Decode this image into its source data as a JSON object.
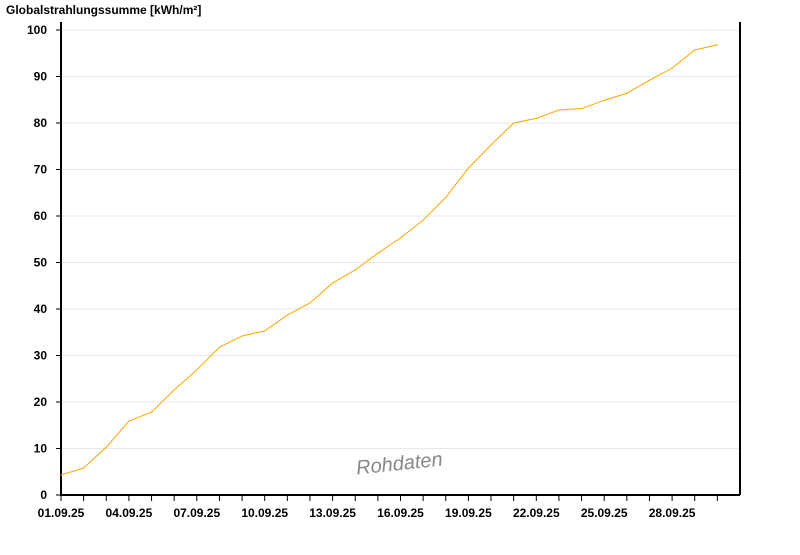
{
  "chart_data": {
    "type": "line",
    "ylabel": "Globalstrahlungssumme [kWh/m²]",
    "watermark": "Rohdaten",
    "ylim": [
      0,
      100
    ],
    "yticks": [
      0,
      10,
      20,
      30,
      40,
      50,
      60,
      70,
      80,
      90,
      100
    ],
    "grid": true,
    "x_tick_labels": [
      "01.09.25",
      "04.09.25",
      "07.09.25",
      "10.09.25",
      "13.09.25",
      "16.09.25",
      "19.09.25",
      "22.09.25",
      "25.09.25",
      "28.09.25"
    ],
    "x": [
      "01.09.25",
      "02.09.25",
      "03.09.25",
      "04.09.25",
      "05.09.25",
      "06.09.25",
      "07.09.25",
      "08.09.25",
      "09.09.25",
      "10.09.25",
      "11.09.25",
      "12.09.25",
      "13.09.25",
      "14.09.25",
      "15.09.25",
      "16.09.25",
      "17.09.25",
      "18.09.25",
      "19.09.25",
      "20.09.25",
      "21.09.25",
      "22.09.25",
      "23.09.25",
      "24.09.25",
      "25.09.25",
      "26.09.25",
      "27.09.25",
      "28.09.25",
      "29.09.25",
      "30.09.25"
    ],
    "series": [
      {
        "values": [
          4.3,
          5.8,
          10.3,
          15.9,
          17.8,
          22.6,
          26.9,
          31.8,
          34.2,
          35.3,
          38.7,
          41.3,
          45.6,
          48.4,
          52.0,
          55.3,
          59.1,
          64.0,
          70.3,
          75.3,
          80.0,
          81.0,
          82.8,
          83.1,
          84.9,
          86.4,
          89.2,
          91.8,
          95.7,
          96.8
        ],
        "color": "#ffa500"
      }
    ]
  }
}
